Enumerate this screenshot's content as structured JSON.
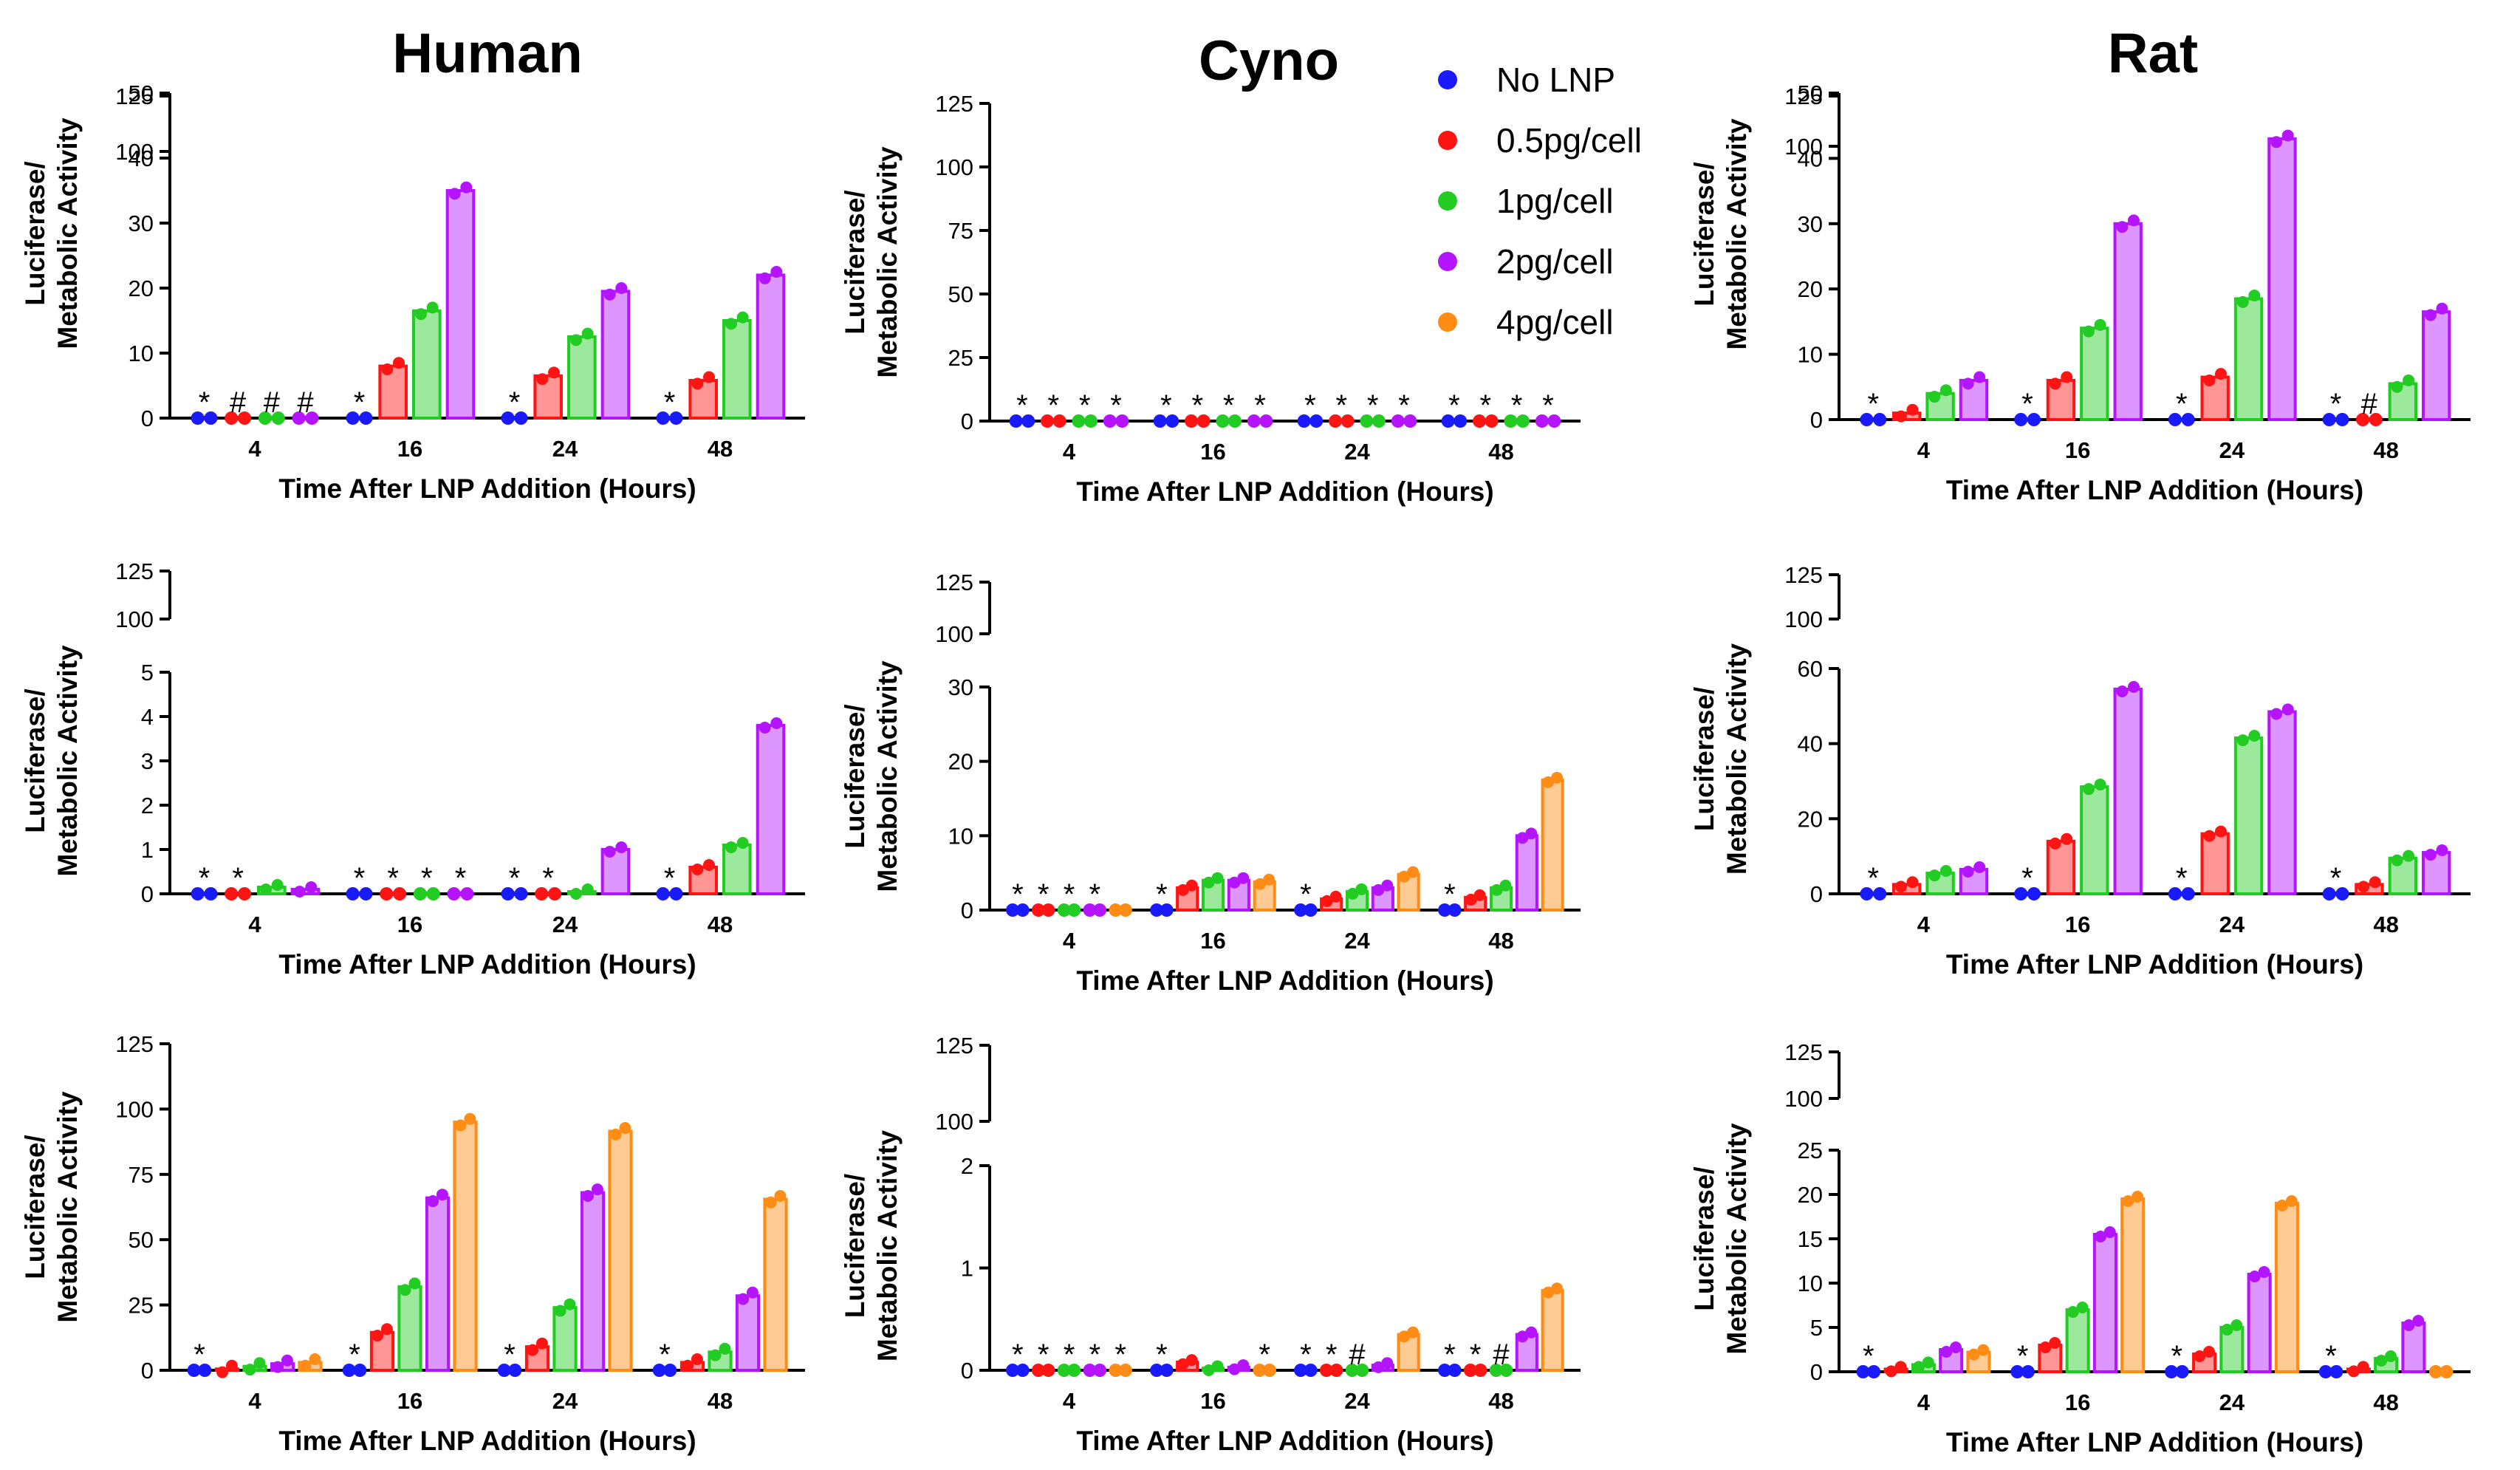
{
  "column_titles": [
    "Human",
    "Cyno",
    "Rat"
  ],
  "legend": [
    {
      "label": "No LNP",
      "color": "#1a1aff"
    },
    {
      "label": "0.5pg/cell",
      "color": "#ff1414"
    },
    {
      "label": "1pg/cell",
      "color": "#22cc22"
    },
    {
      "label": "2pg/cell",
      "color": "#b414ff"
    },
    {
      "label": "4pg/cell",
      "color": "#ff8c14"
    }
  ],
  "chart_data": [
    {
      "type": "bar",
      "column": "Human",
      "row": 1,
      "categories": [
        "4",
        "16",
        "24",
        "48"
      ],
      "xlabel": "Time After LNP Addition (Hours)",
      "ylabel": [
        "Luciferase/",
        "Metabolic Activity"
      ],
      "lower_axis": {
        "range": [
          0,
          50
        ],
        "ticks": [
          "0",
          "10",
          "20",
          "30",
          "40",
          "50"
        ]
      },
      "upper_axis": {
        "range": [
          100,
          125
        ],
        "ticks": [
          "100",
          "125"
        ]
      },
      "series": [
        {
          "name": "No LNP",
          "values": [
            0,
            0,
            0,
            0
          ],
          "markers": [
            "*",
            "*",
            "*",
            "*"
          ]
        },
        {
          "name": "0.5pg/cell",
          "values": [
            0,
            8,
            6.5,
            5.8
          ],
          "markers": [
            "#",
            "",
            "",
            ""
          ]
        },
        {
          "name": "1pg/cell",
          "values": [
            0,
            16.5,
            12.5,
            15
          ],
          "markers": [
            "#",
            "",
            "",
            ""
          ]
        },
        {
          "name": "2pg/cell",
          "values": [
            0,
            35,
            19.5,
            22
          ],
          "markers": [
            "#",
            "",
            "",
            ""
          ]
        }
      ]
    },
    {
      "type": "bar",
      "column": "Cyno",
      "row": 1,
      "categories": [
        "4",
        "16",
        "24",
        "48"
      ],
      "xlabel": "Time After LNP Addition (Hours)",
      "ylabel": [
        "Luciferase/",
        "Metabolic Activity"
      ],
      "lower_axis": {
        "range": [
          0,
          125
        ],
        "ticks": [
          "0",
          "25",
          "50",
          "75",
          "100",
          "125"
        ]
      },
      "series": [
        {
          "name": "No LNP",
          "values": [
            0,
            0,
            0,
            0
          ],
          "markers": [
            "*",
            "*",
            "*",
            "*"
          ]
        },
        {
          "name": "0.5pg/cell",
          "values": [
            0,
            0,
            0,
            0
          ],
          "markers": [
            "*",
            "*",
            "*",
            "*"
          ]
        },
        {
          "name": "1pg/cell",
          "values": [
            0,
            0,
            0,
            0
          ],
          "markers": [
            "*",
            "*",
            "*",
            "*"
          ]
        },
        {
          "name": "2pg/cell",
          "values": [
            0,
            0,
            0,
            0
          ],
          "markers": [
            "*",
            "*",
            "*",
            "*"
          ]
        }
      ]
    },
    {
      "type": "bar",
      "column": "Rat",
      "row": 1,
      "categories": [
        "4",
        "16",
        "24",
        "48"
      ],
      "xlabel": "Time After LNP Addition (Hours)",
      "ylabel": [
        "Luciferase/",
        "Metabolic Activity"
      ],
      "lower_axis": {
        "range": [
          0,
          50
        ],
        "ticks": [
          "0",
          "10",
          "20",
          "30",
          "40",
          "50"
        ]
      },
      "upper_axis": {
        "range": [
          100,
          125
        ],
        "ticks": [
          "100",
          "125"
        ]
      },
      "series": [
        {
          "name": "No LNP",
          "values": [
            0,
            0,
            0,
            0
          ],
          "markers": [
            "*",
            "*",
            "*",
            "*"
          ]
        },
        {
          "name": "0.5pg/cell",
          "values": [
            1,
            6,
            6.5,
            0
          ],
          "markers": [
            "",
            "",
            "",
            "#"
          ]
        },
        {
          "name": "1pg/cell",
          "values": [
            4,
            14,
            18.5,
            5.5
          ],
          "markers": [
            "",
            "",
            "",
            ""
          ]
        },
        {
          "name": "2pg/cell",
          "values": [
            6,
            30,
            43,
            16.5
          ],
          "markers": [
            "",
            "",
            "",
            ""
          ]
        }
      ]
    },
    {
      "type": "bar",
      "column": "Human",
      "row": 2,
      "categories": [
        "4",
        "16",
        "24",
        "48"
      ],
      "xlabel": "Time After LNP Addition (Hours)",
      "ylabel": [
        "Luciferase/",
        "Metabolic Activity"
      ],
      "lower_axis": {
        "range": [
          0,
          5
        ],
        "ticks": [
          "0",
          "1",
          "2",
          "3",
          "4",
          "5"
        ]
      },
      "upper_axis": {
        "range": [
          100,
          125
        ],
        "ticks": [
          "100",
          "125"
        ]
      },
      "series": [
        {
          "name": "No LNP",
          "values": [
            0,
            0,
            0,
            0
          ],
          "markers": [
            "*",
            "*",
            "*",
            "*"
          ]
        },
        {
          "name": "0.5pg/cell",
          "values": [
            0,
            0,
            0,
            0.6
          ],
          "markers": [
            "*",
            "*",
            "*",
            ""
          ]
        },
        {
          "name": "1pg/cell",
          "values": [
            0.15,
            0,
            0.05,
            1.1
          ],
          "markers": [
            "",
            "*",
            "",
            ""
          ]
        },
        {
          "name": "2pg/cell",
          "values": [
            0.1,
            0,
            1.0,
            3.8
          ],
          "markers": [
            "",
            "*",
            "",
            ""
          ]
        }
      ]
    },
    {
      "type": "bar",
      "column": "Cyno",
      "row": 2,
      "categories": [
        "4",
        "16",
        "24",
        "48"
      ],
      "xlabel": "Time After LNP Addition (Hours)",
      "ylabel": [
        "Luciferase/",
        "Metabolic Activity"
      ],
      "lower_axis": {
        "range": [
          0,
          30
        ],
        "ticks": [
          "0",
          "10",
          "20",
          "30"
        ]
      },
      "upper_axis": {
        "range": [
          100,
          125
        ],
        "ticks": [
          "100",
          "125"
        ]
      },
      "series": [
        {
          "name": "No LNP",
          "values": [
            0,
            0,
            0,
            0
          ],
          "markers": [
            "*",
            "*",
            "*",
            "*"
          ]
        },
        {
          "name": "0.5pg/cell",
          "values": [
            0,
            3,
            1.5,
            1.7
          ],
          "markers": [
            "*",
            "",
            "",
            ""
          ]
        },
        {
          "name": "1pg/cell",
          "values": [
            0,
            4,
            2.5,
            3
          ],
          "markers": [
            "*",
            "",
            "",
            ""
          ]
        },
        {
          "name": "2pg/cell",
          "values": [
            0,
            4,
            3,
            10
          ],
          "markers": [
            "*",
            "",
            "",
            ""
          ]
        },
        {
          "name": "4pg/cell",
          "values": [
            0,
            3.8,
            4.8,
            17.5
          ],
          "markers": [
            "",
            "",
            "",
            ""
          ]
        }
      ]
    },
    {
      "type": "bar",
      "column": "Rat",
      "row": 2,
      "categories": [
        "4",
        "16",
        "24",
        "48"
      ],
      "xlabel": "Time After LNP Addition (Hours)",
      "ylabel": [
        "Luciferase/",
        "Metabolic Activity"
      ],
      "lower_axis": {
        "range": [
          0,
          60
        ],
        "ticks": [
          "0",
          "20",
          "40",
          "60"
        ]
      },
      "upper_axis": {
        "range": [
          100,
          125
        ],
        "ticks": [
          "100",
          "125"
        ]
      },
      "series": [
        {
          "name": "No LNP",
          "values": [
            0,
            0,
            0,
            0
          ],
          "markers": [
            "*",
            "*",
            "*",
            "*"
          ]
        },
        {
          "name": "0.5pg/cell",
          "values": [
            2.5,
            14,
            16,
            2.5
          ],
          "markers": [
            "",
            "",
            "",
            ""
          ]
        },
        {
          "name": "1pg/cell",
          "values": [
            5.5,
            28.5,
            41.5,
            9.5
          ],
          "markers": [
            "",
            "",
            "",
            ""
          ]
        },
        {
          "name": "2pg/cell",
          "values": [
            6.5,
            54.5,
            48.5,
            11
          ],
          "markers": [
            "",
            "",
            "",
            ""
          ]
        }
      ]
    },
    {
      "type": "bar",
      "column": "Human",
      "row": 3,
      "categories": [
        "4",
        "16",
        "24",
        "48"
      ],
      "xlabel": "Time After LNP Addition (Hours)",
      "ylabel": [
        "Luciferase/",
        "Metabolic Activity"
      ],
      "lower_axis": {
        "range": [
          0,
          125
        ],
        "ticks": [
          "0",
          "25",
          "50",
          "75",
          "100",
          "125"
        ]
      },
      "series": [
        {
          "name": "No LNP",
          "values": [
            0,
            0,
            0,
            0
          ],
          "markers": [
            "*",
            "*",
            "*",
            "*"
          ]
        },
        {
          "name": "0.5pg/cell",
          "values": [
            0.5,
            14.5,
            9,
            3
          ],
          "markers": [
            "",
            "",
            "",
            ""
          ]
        },
        {
          "name": "1pg/cell",
          "values": [
            1.5,
            32,
            24,
            7
          ],
          "markers": [
            "",
            "",
            "",
            ""
          ]
        },
        {
          "name": "2pg/cell",
          "values": [
            2.5,
            66,
            68,
            28.5
          ],
          "markers": [
            "",
            "",
            "",
            ""
          ]
        },
        {
          "name": "4pg/cell",
          "values": [
            3,
            95,
            91.5,
            65.5
          ],
          "markers": [
            "",
            "",
            "",
            ""
          ]
        }
      ]
    },
    {
      "type": "bar",
      "column": "Cyno",
      "row": 3,
      "categories": [
        "4",
        "16",
        "24",
        "48"
      ],
      "xlabel": "Time After LNP Addition (Hours)",
      "ylabel": [
        "Luciferase/",
        "Metabolic Activity"
      ],
      "lower_axis": {
        "range": [
          0,
          2
        ],
        "ticks": [
          "0",
          "1",
          "2"
        ]
      },
      "upper_axis": {
        "range": [
          100,
          125
        ],
        "ticks": [
          "100",
          "125"
        ]
      },
      "series": [
        {
          "name": "No LNP",
          "values": [
            0,
            0,
            0,
            0
          ],
          "markers": [
            "*",
            "*",
            "*",
            "*"
          ]
        },
        {
          "name": "0.5pg/cell",
          "values": [
            0,
            0.08,
            0,
            0
          ],
          "markers": [
            "*",
            "",
            "*",
            "*"
          ]
        },
        {
          "name": "1pg/cell",
          "values": [
            0,
            0.02,
            0,
            0
          ],
          "markers": [
            "*",
            "",
            "#",
            "#"
          ]
        },
        {
          "name": "2pg/cell",
          "values": [
            0,
            0.03,
            0.05,
            0.35
          ],
          "markers": [
            "*",
            "",
            "",
            ""
          ]
        },
        {
          "name": "4pg/cell",
          "values": [
            0,
            0,
            0.35,
            0.78
          ],
          "markers": [
            "*",
            "*",
            "",
            ""
          ]
        }
      ]
    },
    {
      "type": "bar",
      "column": "Rat",
      "row": 3,
      "categories": [
        "4",
        "16",
        "24",
        "48"
      ],
      "xlabel": "Time After LNP Addition (Hours)",
      "ylabel": [
        "Luciferase/",
        "Metabolic Activity"
      ],
      "lower_axis": {
        "range": [
          0,
          25
        ],
        "ticks": [
          "0",
          "5",
          "10",
          "15",
          "20",
          "25"
        ]
      },
      "upper_axis": {
        "range": [
          100,
          125
        ],
        "ticks": [
          "100",
          "125"
        ]
      },
      "series": [
        {
          "name": "No LNP",
          "values": [
            0,
            0,
            0,
            0
          ],
          "markers": [
            "*",
            "*",
            "*",
            "*"
          ]
        },
        {
          "name": "0.5pg/cell",
          "values": [
            0.3,
            3,
            2,
            0.3
          ],
          "markers": [
            "",
            "",
            "",
            ""
          ]
        },
        {
          "name": "1pg/cell",
          "values": [
            0.8,
            7,
            5,
            1.5
          ],
          "markers": [
            "",
            "",
            "",
            ""
          ]
        },
        {
          "name": "2pg/cell",
          "values": [
            2.5,
            15.5,
            11,
            5.5
          ],
          "markers": [
            "",
            "",
            "",
            ""
          ]
        },
        {
          "name": "4pg/cell",
          "values": [
            2.2,
            19.5,
            19,
            0
          ],
          "markers": [
            "",
            "",
            "",
            ""
          ]
        }
      ]
    }
  ]
}
